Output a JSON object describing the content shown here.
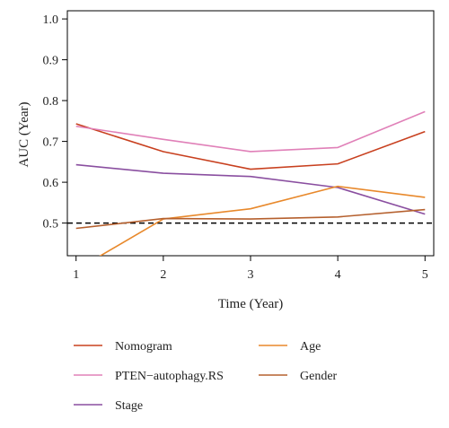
{
  "chart_data": {
    "type": "line",
    "xlabel": "Time (Year)",
    "ylabel": "AUC (Year)",
    "x": [
      1,
      2,
      3,
      4,
      5
    ],
    "x_ticks": [
      "1",
      "2",
      "3",
      "4",
      "5"
    ],
    "y_ticks": [
      "0.5",
      "0.6",
      "0.7",
      "0.8",
      "0.9",
      "1.0"
    ],
    "ylim": [
      0.42,
      1.02
    ],
    "xlim": [
      0.9,
      5.1
    ],
    "reference_line": {
      "y": 0.5,
      "style": "dashed",
      "color": "#000000"
    },
    "legend_position": "bottom",
    "series": [
      {
        "name": "Nomogram",
        "color": "#c8401f",
        "values": [
          0.743,
          0.675,
          0.632,
          0.645,
          0.724
        ]
      },
      {
        "name": "PTEN−autophagy.RS",
        "color": "#e080b8",
        "values": [
          0.737,
          0.705,
          0.675,
          0.685,
          0.773
        ]
      },
      {
        "name": "Stage",
        "color": "#8a4fa0",
        "values": [
          0.643,
          0.622,
          0.614,
          0.587,
          0.522
        ]
      },
      {
        "name": "Age",
        "color": "#e8892c",
        "values": [
          0.385,
          0.51,
          0.535,
          0.59,
          0.563
        ]
      },
      {
        "name": "Gender",
        "color": "#b5602e",
        "values": [
          0.487,
          0.511,
          0.51,
          0.515,
          0.533
        ]
      }
    ]
  }
}
